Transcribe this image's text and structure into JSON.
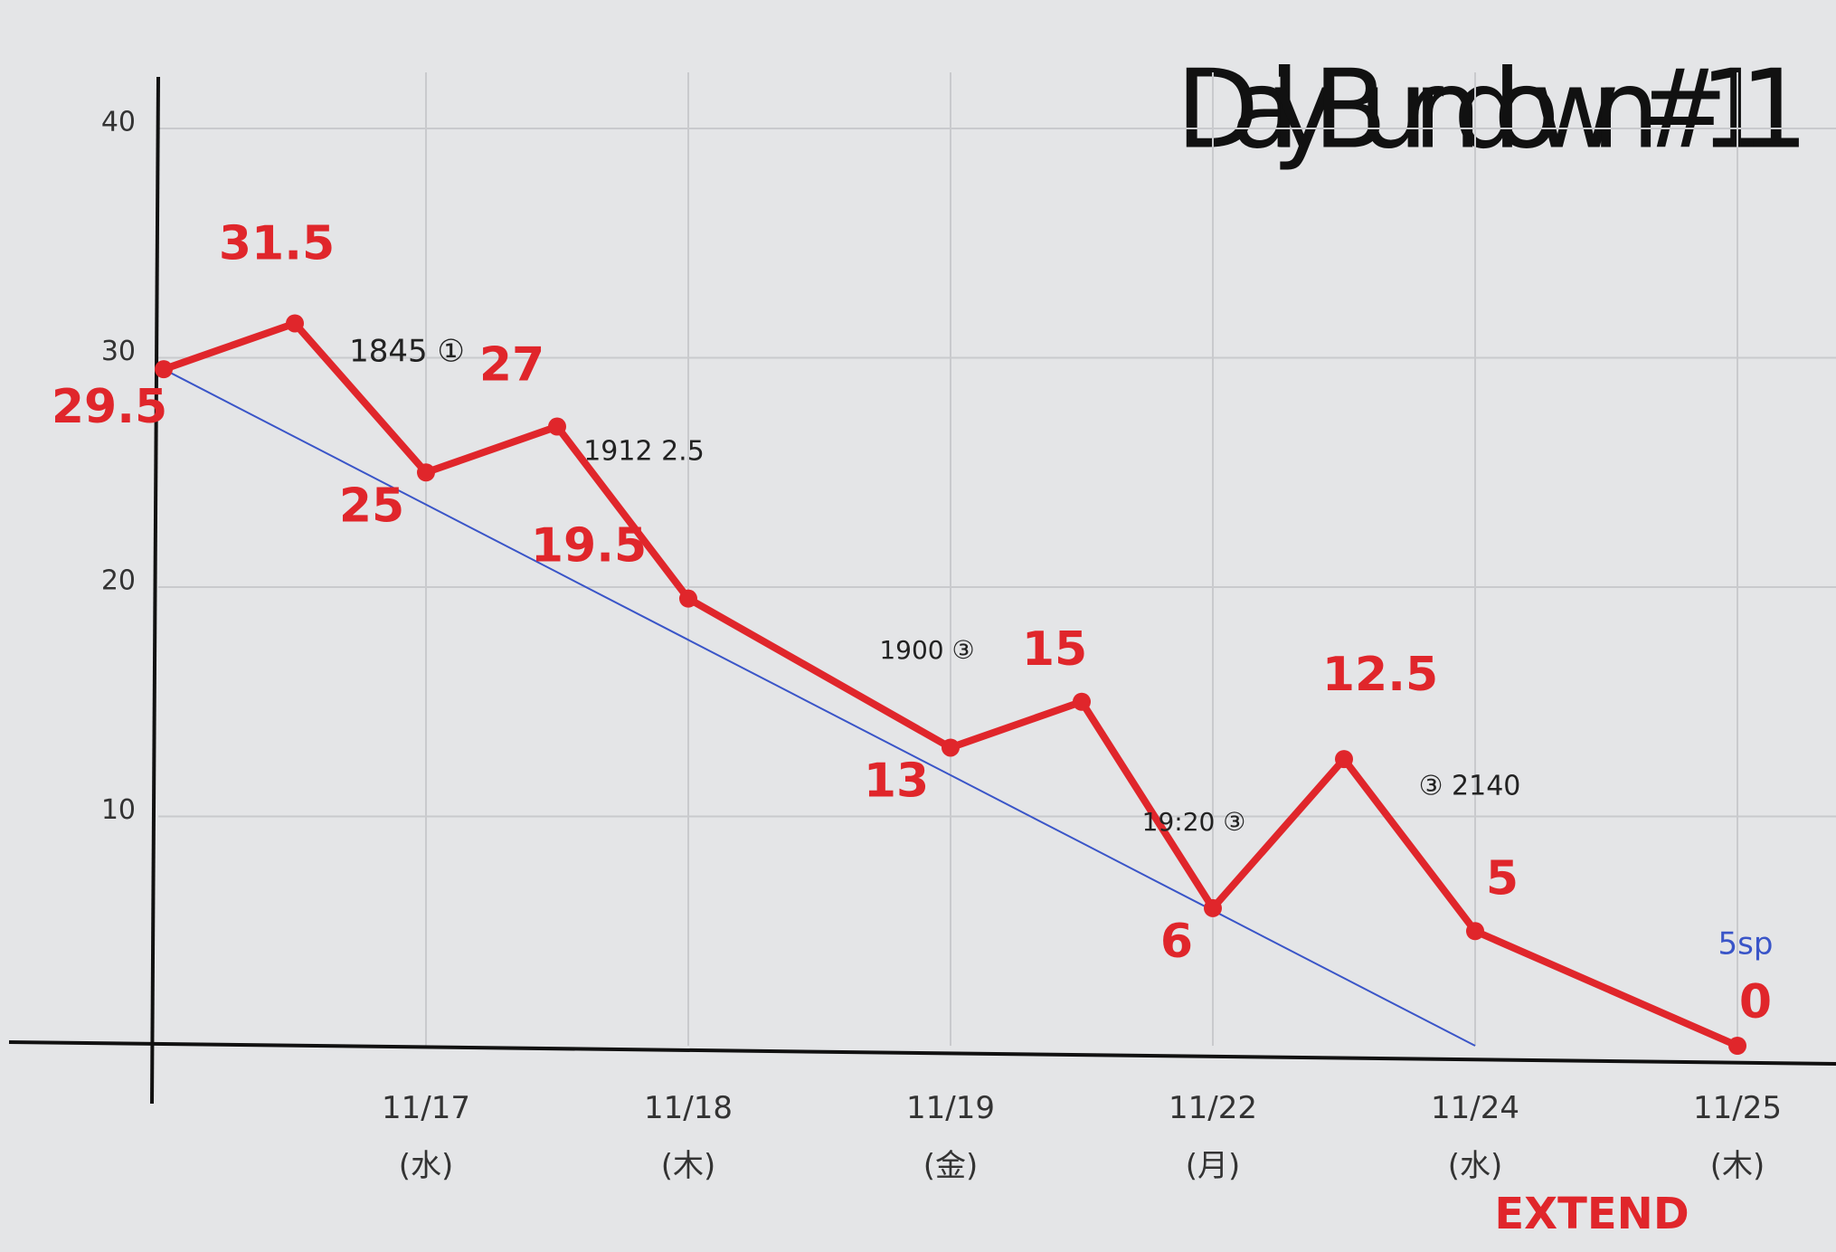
{
  "chart_data": {
    "type": "line",
    "title": "Daily Burndown #11",
    "categories": [
      null,
      null,
      "11/17 (水)",
      null,
      "11/18 (木)",
      "11/19 (金)",
      null,
      "11/22 (月)",
      null,
      "11/24 (水)",
      "11/25 (木)"
    ],
    "series": [
      {
        "color": "#e0262b",
        "values": [
          29.5,
          31.5,
          25,
          27,
          19.5,
          13,
          15,
          6,
          12.5,
          5,
          0
        ]
      },
      {
        "color": "#3a55c8",
        "values": [
          29.5,
          26.55,
          23.6,
          20.65,
          17.7,
          11.8,
          8.85,
          5.9,
          2.95,
          0,
          null
        ]
      }
    ],
    "ylim": [
      0,
      40
    ],
    "yticks": [
      10,
      20,
      30,
      40
    ],
    "grid": true,
    "annotations": [
      {
        "text": "1845 ①",
        "color": "#222222"
      },
      {
        "text": "1912 2.5",
        "color": "#222222"
      },
      {
        "text": "1900 ③",
        "color": "#222222"
      },
      {
        "text": "19:20 ③",
        "color": "#222222"
      },
      {
        "text": "③ 2140",
        "color": "#222222"
      },
      {
        "text": "5sp",
        "color": "#3a55c8"
      },
      {
        "text": "EXTEND",
        "color": "#e0262b"
      }
    ]
  }
}
